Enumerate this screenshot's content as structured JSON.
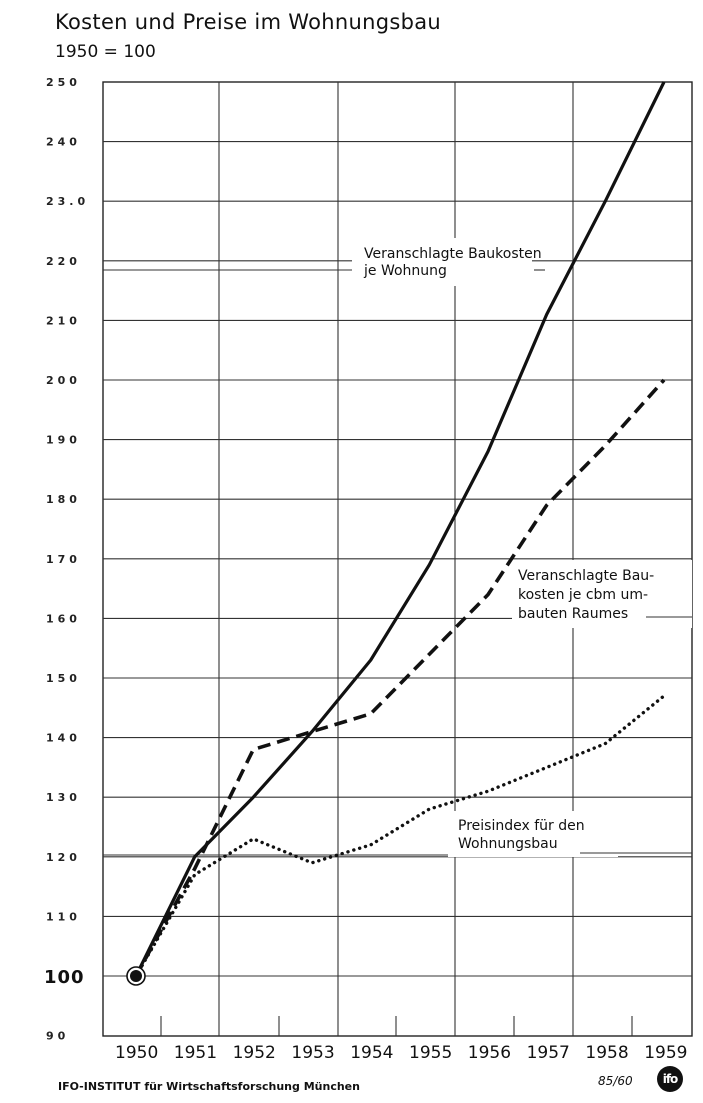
{
  "header": {
    "title": "Kosten und Preise im Wohnungsbau",
    "subtitle": "1950 = 100"
  },
  "footer": {
    "institute": "IFO-INSTITUT für Wirtschaftsforschung München",
    "doc_number": "85/60",
    "logo_text": "ifo"
  },
  "chart_data": {
    "type": "line",
    "title": "Kosten und Preise im Wohnungsbau",
    "subtitle": "1950 = 100",
    "xlabel": "",
    "ylabel": "",
    "x": [
      1950,
      1951,
      1952,
      1953,
      1954,
      1955,
      1956,
      1957,
      1958,
      1959
    ],
    "x_tick_labels": [
      "1950",
      "1951",
      "1952",
      "1953",
      "1954",
      "1955",
      "1956",
      "1957",
      "1958",
      "1959"
    ],
    "y_tick_labels": [
      "250",
      "240",
      "23.0",
      "220",
      "210",
      "200",
      "190",
      "180",
      "170",
      "160",
      "150",
      "140",
      "130",
      "120",
      "110",
      "100",
      "90"
    ],
    "ylim": [
      90,
      250
    ],
    "grid": true,
    "series": [
      {
        "name": "Veranschlagte Baukosten je Wohnung",
        "style": "solid",
        "values": [
          100,
          120,
          130,
          141,
          153,
          169,
          188,
          211,
          230,
          250
        ]
      },
      {
        "name": "Veranschlagte Baukosten je cbm umbauten Raumes",
        "style": "dashed",
        "values": [
          100,
          118,
          138,
          141,
          144,
          154,
          164,
          179,
          189,
          200
        ]
      },
      {
        "name": "Preisindex für den Wohnungsbau",
        "style": "dotted",
        "values": [
          100,
          117,
          123,
          119,
          122,
          128,
          131,
          135,
          139,
          147
        ]
      }
    ],
    "annotations": [
      {
        "lines": [
          "Veranschlagte Baukosten",
          "je Wohnung"
        ],
        "series": 0
      },
      {
        "lines": [
          "Veranschlagte Bau-",
          "kosten je cbm um-",
          "bauten Raumes"
        ],
        "series": 1
      },
      {
        "lines": [
          "Preisindex für den",
          "Wohnungsbau"
        ],
        "series": 2
      }
    ],
    "base_marker": {
      "x": 1950,
      "y": 100,
      "shape": "circle"
    },
    "legend_position": "inline annotations"
  }
}
